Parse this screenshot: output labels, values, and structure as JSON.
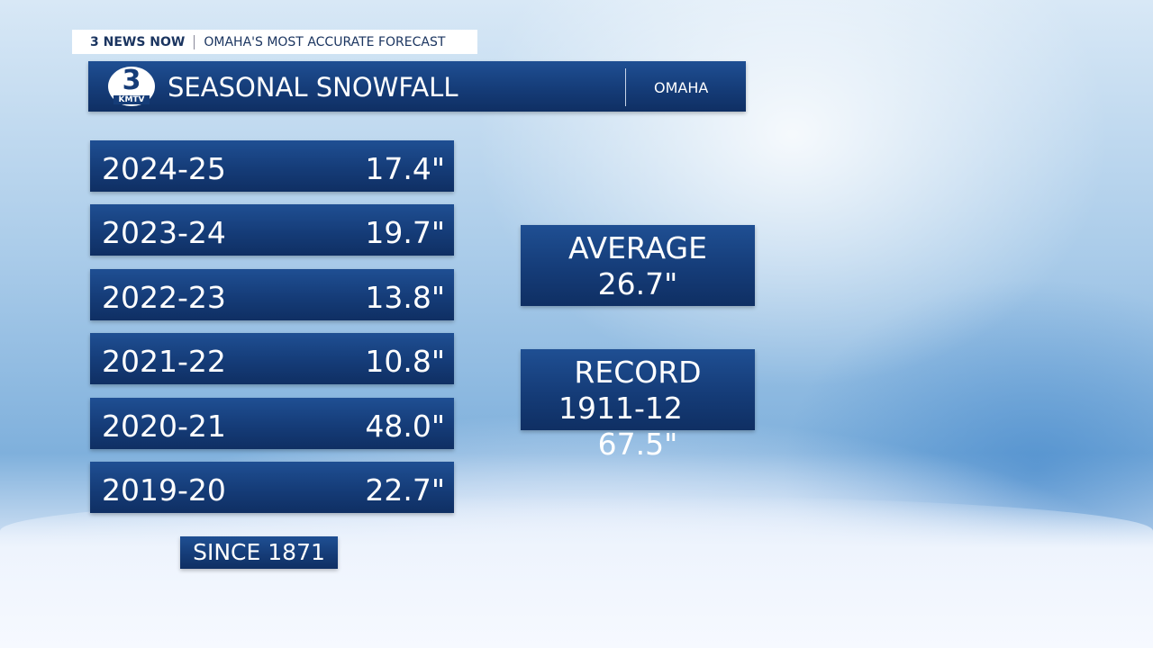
{
  "header": {
    "brand": "3 NEWS NOW",
    "slogan": "OMAHA'S MOST ACCURATE FORECAST"
  },
  "logo": {
    "number": "3",
    "call_sign": "KMTV"
  },
  "title": "SEASONAL SNOWFALL",
  "location": "OMAHA",
  "table": {
    "rows": [
      [
        "2024-25",
        "17.4\""
      ],
      [
        "2023-24",
        "19.7\""
      ],
      [
        "2022-23",
        "13.8\""
      ],
      [
        "2021-22",
        "10.8\""
      ],
      [
        "2020-21",
        "48.0\""
      ],
      [
        "2019-20",
        "22.7\""
      ]
    ]
  },
  "average": {
    "label": "AVERAGE",
    "value": "26.7\""
  },
  "record": {
    "label": "RECORD",
    "season": "1911-12",
    "value": "67.5\""
  },
  "footnote": "SINCE 1871"
}
